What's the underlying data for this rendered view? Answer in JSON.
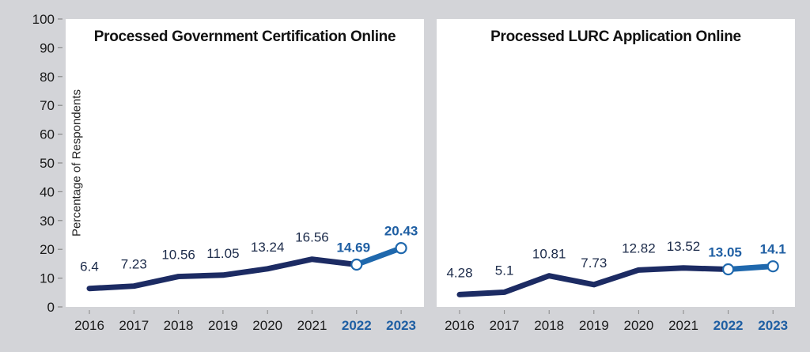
{
  "chart_data": [
    {
      "type": "line",
      "title": "Processed Government Certification Online",
      "xlabel": "",
      "ylabel": "Percentage of Respondents",
      "ylim": [
        0,
        100
      ],
      "yticks": [
        0,
        10,
        20,
        30,
        40,
        50,
        60,
        70,
        80,
        90,
        100
      ],
      "categories": [
        "2016",
        "2017",
        "2018",
        "2019",
        "2020",
        "2021",
        "2022",
        "2023"
      ],
      "values": [
        6.4,
        7.23,
        10.56,
        11.05,
        13.24,
        16.56,
        14.69,
        20.43
      ],
      "data_labels": [
        "6.4",
        "7.23",
        "10.56",
        "11.05",
        "13.24",
        "16.56",
        "14.69",
        "20.43"
      ],
      "highlighted_categories": [
        "2022",
        "2023"
      ],
      "grid": false
    },
    {
      "type": "line",
      "title": "Processed LURC Application Online",
      "xlabel": "",
      "ylabel": "",
      "ylim": [
        0,
        100
      ],
      "categories": [
        "2016",
        "2017",
        "2018",
        "2019",
        "2020",
        "2021",
        "2022",
        "2023"
      ],
      "values": [
        4.28,
        5.1,
        10.81,
        7.73,
        12.82,
        13.52,
        13.05,
        14.1
      ],
      "data_labels": [
        "4.28",
        "5.1",
        "10.81",
        "7.73",
        "12.82",
        "13.52",
        "13.05",
        "14.1"
      ],
      "highlighted_categories": [
        "2022",
        "2023"
      ],
      "grid": false
    }
  ],
  "colors": {
    "primary_line": "#1c2b63",
    "highlight_line": "#1f68ad",
    "highlight_text": "#1f5fa3",
    "text": "#1a1a1a",
    "label_text": "#1c2b4a",
    "panel_bg": "#ffffff",
    "page_bg": "#d3d4d8",
    "tick": "#888888"
  }
}
